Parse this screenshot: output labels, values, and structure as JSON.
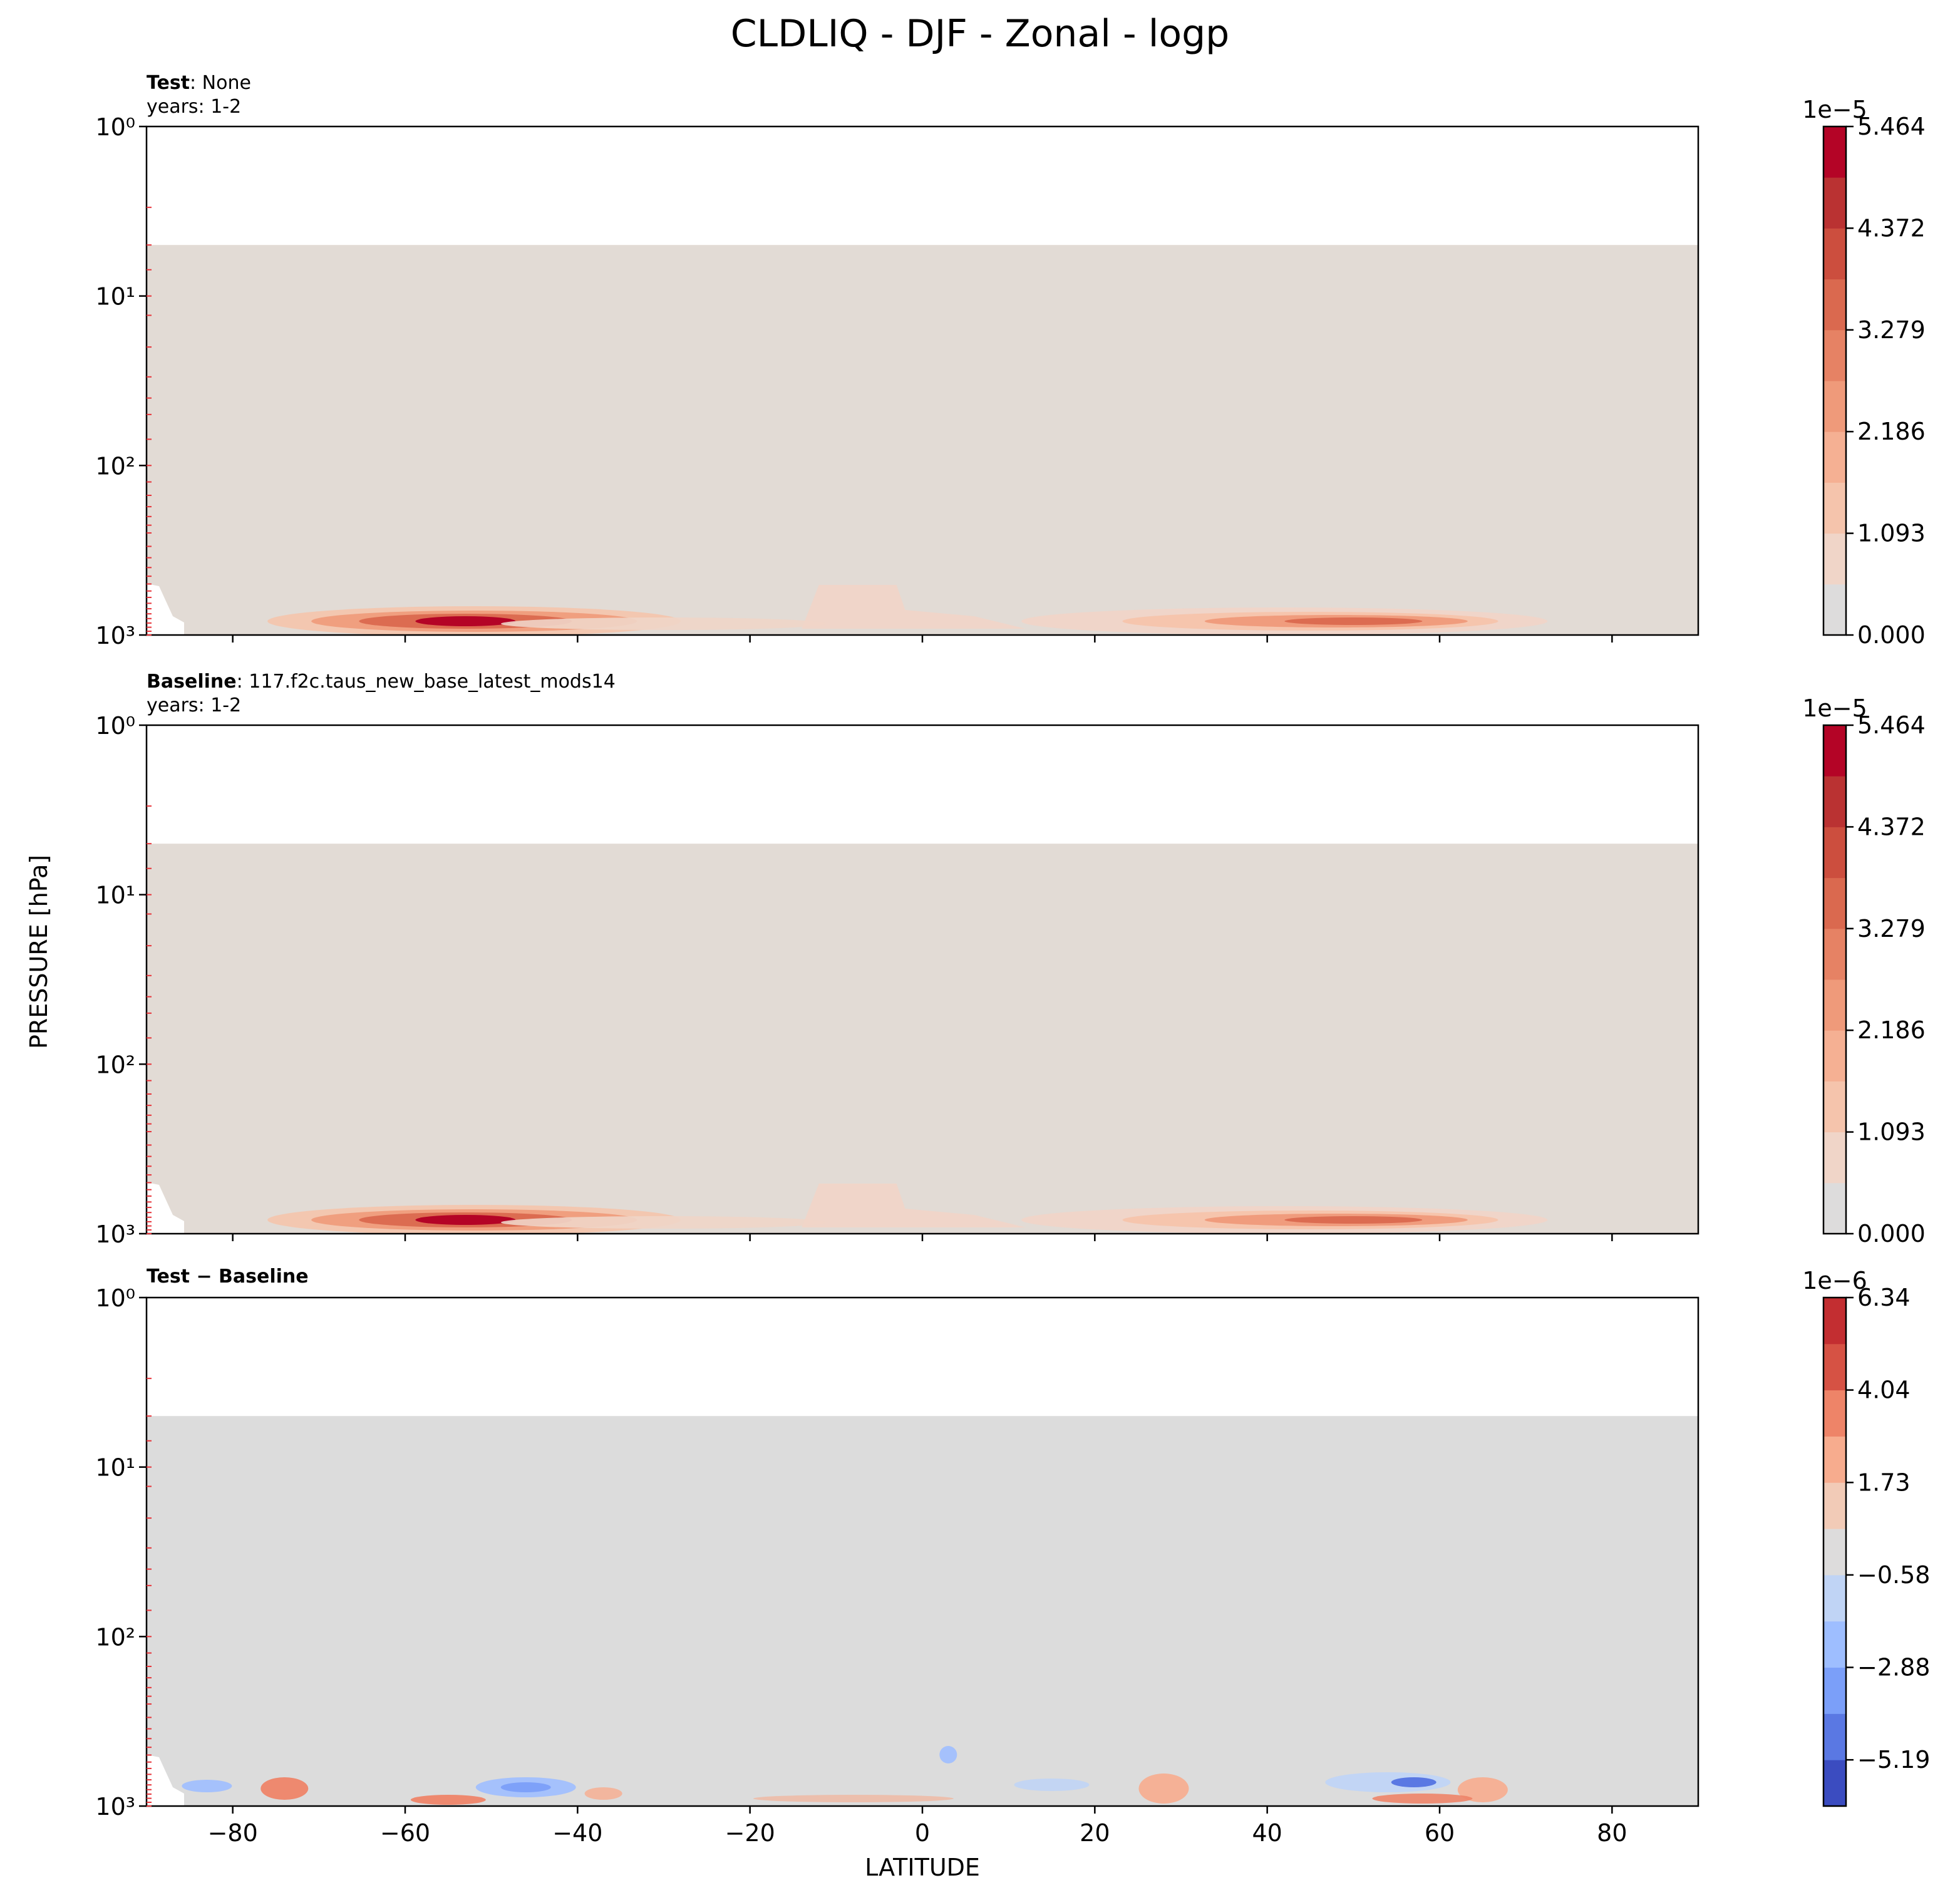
{
  "figure": {
    "title": "CLDLIQ - DJF - Zonal - logp",
    "ylabel": "PRESSURE [hPa]",
    "xlabel": "LATITUDE"
  },
  "chart_data": [
    {
      "type": "heatmap",
      "panel": "test",
      "label_bold": "Test",
      "label_rest": ": None",
      "years": "years: 1-2",
      "xlim": [
        -90,
        90
      ],
      "ylim": [
        1000,
        1
      ],
      "yscale": "log",
      "xticks": [
        -80,
        -60,
        -40,
        -20,
        0,
        20,
        40,
        60,
        80
      ],
      "yticks": [
        "10⁰",
        "10¹",
        "10²",
        "10³"
      ],
      "colorbar": {
        "multiplier": "1e−5",
        "ticks": [
          "0.000",
          "1.093",
          "2.186",
          "3.279",
          "4.372",
          "5.464"
        ],
        "colors": [
          "#dddcdc",
          "#f0d5c8",
          "#f5c4ac",
          "#f5b093",
          "#ef9a7a",
          "#e68264",
          "#da694f",
          "#cc4e3e",
          "#ba3232",
          "#b40426"
        ]
      },
      "features": [
        {
          "name": "southern-low-cloud-jet",
          "lat_range": [
            -80,
            -15
          ],
          "peak_lat": -53,
          "peak": 5.9e-05
        },
        {
          "name": "tropical-shallow",
          "lat_range": [
            -15,
            5
          ],
          "peak": 1e-05
        },
        {
          "name": "northern-low-cloud-band",
          "lat_range": [
            15,
            78
          ],
          "peak_lat": 50,
          "peak": 3.6e-05
        }
      ]
    },
    {
      "type": "heatmap",
      "panel": "baseline",
      "label_bold": "Baseline",
      "label_rest": ": 117.f2c.taus_new_base_latest_mods14",
      "years": "years: 1-2",
      "xlim": [
        -90,
        90
      ],
      "ylim": [
        1000,
        1
      ],
      "yscale": "log",
      "xticks": [
        -80,
        -60,
        -40,
        -20,
        0,
        20,
        40,
        60,
        80
      ],
      "yticks": [
        "10⁰",
        "10¹",
        "10²",
        "10³"
      ],
      "colorbar": {
        "multiplier": "1e−5",
        "ticks": [
          "0.000",
          "1.093",
          "2.186",
          "3.279",
          "4.372",
          "5.464"
        ],
        "colors": [
          "#dddcdc",
          "#f0d5c8",
          "#f5c4ac",
          "#f5b093",
          "#ef9a7a",
          "#e68264",
          "#da694f",
          "#cc4e3e",
          "#ba3232",
          "#b40426"
        ]
      },
      "features": [
        {
          "name": "southern-low-cloud-jet",
          "lat_range": [
            -80,
            -15
          ],
          "peak_lat": -53,
          "peak": 5.9e-05
        },
        {
          "name": "tropical-shallow",
          "lat_range": [
            -15,
            5
          ],
          "peak": 1e-05
        },
        {
          "name": "northern-low-cloud-band",
          "lat_range": [
            15,
            78
          ],
          "peak_lat": 50,
          "peak": 3.4e-05
        }
      ]
    },
    {
      "type": "heatmap",
      "panel": "difference",
      "label_bold": "Test − Baseline",
      "label_rest": "",
      "years": "",
      "xlim": [
        -90,
        90
      ],
      "ylim": [
        1000,
        1
      ],
      "yscale": "log",
      "xticks": [
        -80,
        -60,
        -40,
        -20,
        0,
        20,
        40,
        60,
        80
      ],
      "yticks": [
        "10⁰",
        "10¹",
        "10²",
        "10³"
      ],
      "colorbar": {
        "multiplier": "1e−6",
        "ticks": [
          "−5.19",
          "−2.88",
          "−0.58",
          "1.73",
          "4.04",
          "6.34"
        ],
        "colors": [
          "#3b4cc0",
          "#5a78e3",
          "#7b9ff9",
          "#9ebeff",
          "#c0d4f5",
          "#dddcdc",
          "#f2cbb7",
          "#f7ac8e",
          "#ee8468",
          "#d65244",
          "#c32e31"
        ]
      },
      "features": [
        {
          "name": "positive-anomaly-south",
          "lat_range": [
            -78,
            -68
          ],
          "sign": "+"
        },
        {
          "name": "negative-anomaly-south",
          "lat_range": [
            -52,
            -40
          ],
          "sign": "-"
        },
        {
          "name": "positive-anomaly-north",
          "lat_range": [
            25,
            35
          ],
          "sign": "+"
        },
        {
          "name": "negative-anomaly-north",
          "lat_range": [
            45,
            60
          ],
          "sign": "-"
        },
        {
          "name": "positive-anomaly-high-north",
          "lat_range": [
            60,
            68
          ],
          "sign": "+"
        }
      ]
    }
  ]
}
